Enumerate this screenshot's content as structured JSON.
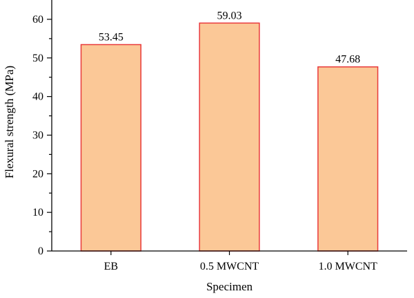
{
  "chart_data": {
    "type": "bar",
    "categories": [
      "EB",
      "0.5 MWCNT",
      "1.0 MWCNT"
    ],
    "values": [
      53.45,
      59.03,
      47.68
    ],
    "data_labels": [
      "53.45",
      "59.03",
      "47.68"
    ],
    "title": "",
    "xlabel": "Specimen",
    "ylabel": "Flexural strength (MPa)",
    "ylim": [
      0,
      65
    ],
    "yticks": [
      0,
      10,
      20,
      30,
      40,
      50,
      60
    ],
    "ytick_labels": [
      "0",
      "10",
      "20",
      "30",
      "40",
      "50",
      "60"
    ],
    "grid": false,
    "legend": "none",
    "bar_fill": "#fbc897",
    "bar_stroke": "#e8393b"
  }
}
